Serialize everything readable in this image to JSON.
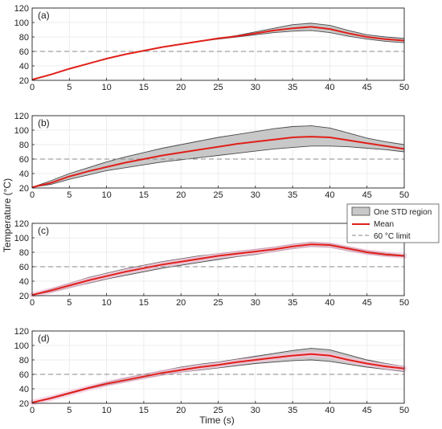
{
  "figure": {
    "ylabel": "Temperature (°C)",
    "xlabel": "Time (s)"
  },
  "colors": {
    "band_fill": "#c8c8c8",
    "band_edge": "#4a4a4a",
    "mean": "#e0201a",
    "limit": "#8a8a8a",
    "grid": "#e6e6e6",
    "pink_halo": "#f7c4dc"
  },
  "legend": {
    "placement": "right, beside panel (c)",
    "items": [
      {
        "label": "One STD region",
        "kind": "band"
      },
      {
        "label": "Mean",
        "kind": "mean"
      },
      {
        "label": "60 °C limit",
        "kind": "limit"
      }
    ]
  },
  "chart_data": [
    {
      "type": "line",
      "panel_label": "(a)",
      "x": [
        0,
        2.5,
        5,
        7.5,
        10,
        12.5,
        15,
        17.5,
        20,
        22.5,
        25,
        27.5,
        30,
        32.5,
        35,
        37.5,
        40,
        42.5,
        45,
        47.5,
        50
      ],
      "xlim": [
        0,
        50
      ],
      "ylim": [
        20,
        120
      ],
      "xticks": [
        0,
        5,
        10,
        15,
        20,
        25,
        30,
        35,
        40,
        45,
        50
      ],
      "yticks": [
        20,
        40,
        60,
        80,
        100,
        120
      ],
      "grid": true,
      "limit": 60,
      "series": [
        {
          "name": "Mean",
          "values": [
            21,
            28,
            36,
            43,
            50,
            56,
            61,
            66,
            70,
            74,
            78,
            81,
            85,
            89,
            92,
            94,
            91,
            85,
            80,
            77,
            75
          ]
        },
        {
          "name": "One STD region",
          "upper": [
            21,
            28,
            36,
            43,
            50,
            56,
            61,
            66,
            70,
            74,
            78,
            82,
            87,
            92,
            97,
            99,
            96,
            89,
            83,
            80,
            78
          ],
          "lower": [
            21,
            28,
            36,
            43,
            50,
            56,
            61,
            66,
            70,
            74,
            77,
            80,
            83,
            86,
            88,
            89,
            86,
            81,
            77,
            74,
            72
          ]
        }
      ]
    },
    {
      "type": "line",
      "panel_label": "(b)",
      "x": [
        0,
        2.5,
        5,
        7.5,
        10,
        12.5,
        15,
        17.5,
        20,
        22.5,
        25,
        27.5,
        30,
        32.5,
        35,
        37.5,
        40,
        42.5,
        45,
        47.5,
        50
      ],
      "xlim": [
        0,
        50
      ],
      "ylim": [
        20,
        120
      ],
      "xticks": [
        0,
        5,
        10,
        15,
        20,
        25,
        30,
        35,
        40,
        45,
        50
      ],
      "yticks": [
        20,
        40,
        60,
        80,
        100,
        120
      ],
      "grid": true,
      "limit": 60,
      "series": [
        {
          "name": "Mean",
          "values": [
            21,
            27,
            36,
            43,
            49,
            55,
            60,
            65,
            69,
            73,
            77,
            81,
            84,
            87,
            90,
            91,
            90,
            86,
            82,
            78,
            74
          ]
        },
        {
          "name": "One STD region",
          "upper": [
            21,
            30,
            40,
            48,
            56,
            63,
            69,
            75,
            80,
            85,
            90,
            94,
            98,
            102,
            105,
            106,
            103,
            96,
            89,
            84,
            80
          ],
          "lower": [
            21,
            25,
            32,
            38,
            44,
            48,
            52,
            56,
            59,
            62,
            65,
            68,
            71,
            74,
            76,
            78,
            78,
            77,
            75,
            73,
            70
          ]
        }
      ]
    },
    {
      "type": "line",
      "panel_label": "(c)",
      "x": [
        0,
        2.5,
        5,
        7.5,
        10,
        12.5,
        15,
        17.5,
        20,
        22.5,
        25,
        27.5,
        30,
        32.5,
        35,
        37.5,
        40,
        42.5,
        45,
        47.5,
        50
      ],
      "xlim": [
        0,
        50
      ],
      "ylim": [
        20,
        120
      ],
      "xticks": [
        0,
        5,
        10,
        15,
        20,
        25,
        30,
        35,
        40,
        45,
        50
      ],
      "yticks": [
        20,
        40,
        60,
        80,
        100,
        120
      ],
      "grid": true,
      "limit": 60,
      "series": [
        {
          "name": "Mean",
          "values": [
            21,
            27,
            34,
            41,
            47,
            53,
            58,
            63,
            67,
            71,
            75,
            78,
            81,
            84,
            88,
            91,
            90,
            85,
            80,
            77,
            75
          ]
        },
        {
          "name": "One STD region",
          "upper": [
            21,
            29,
            37,
            45,
            51,
            57,
            62,
            67,
            71,
            75,
            78,
            81,
            84,
            87,
            91,
            94,
            92,
            87,
            82,
            79,
            76
          ],
          "lower": [
            21,
            25,
            31,
            37,
            43,
            48,
            53,
            58,
            62,
            66,
            70,
            74,
            77,
            81,
            85,
            88,
            87,
            82,
            78,
            75,
            74
          ]
        }
      ]
    },
    {
      "type": "line",
      "panel_label": "(d)",
      "x": [
        0,
        2.5,
        5,
        7.5,
        10,
        12.5,
        15,
        17.5,
        20,
        22.5,
        25,
        27.5,
        30,
        32.5,
        35,
        37.5,
        40,
        42.5,
        45,
        47.5,
        50
      ],
      "xlim": [
        0,
        50
      ],
      "ylim": [
        20,
        120
      ],
      "xticks": [
        0,
        5,
        10,
        15,
        20,
        25,
        30,
        35,
        40,
        45,
        50
      ],
      "yticks": [
        20,
        40,
        60,
        80,
        100,
        120
      ],
      "grid": true,
      "limit": 60,
      "series": [
        {
          "name": "Mean",
          "values": [
            21,
            27,
            34,
            41,
            47,
            52,
            57,
            62,
            66,
            70,
            73,
            77,
            80,
            83,
            86,
            88,
            86,
            80,
            75,
            71,
            68
          ]
        },
        {
          "name": "One STD region",
          "upper": [
            21,
            28,
            35,
            42,
            49,
            55,
            60,
            65,
            70,
            74,
            77,
            81,
            85,
            89,
            93,
            96,
            94,
            87,
            80,
            75,
            71
          ],
          "lower": [
            21,
            26,
            33,
            40,
            45,
            50,
            55,
            59,
            63,
            66,
            69,
            72,
            75,
            77,
            79,
            80,
            78,
            74,
            70,
            67,
            64
          ]
        }
      ]
    }
  ]
}
